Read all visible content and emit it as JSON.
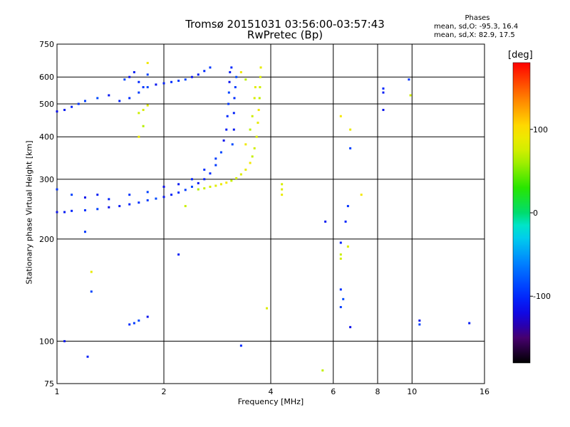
{
  "chart_data": {
    "type": "scatter",
    "title": "Tromsø 20151031 03:56:00-03:57:43",
    "subtitle": "RwPretec (Bp)",
    "xlabel": "Frequency [MHz]",
    "ylabel": "Stationary phase Virtual Height [km]",
    "x_scale": "log",
    "y_scale": "log",
    "xlim": [
      1,
      16
    ],
    "ylim": [
      75,
      750
    ],
    "x_ticks": [
      "1",
      "2",
      "4",
      "6",
      "8",
      "10",
      "16"
    ],
    "y_ticks": [
      "75",
      "100",
      "200",
      "300",
      "400",
      "500",
      "600",
      "750"
    ],
    "grid": true,
    "phases_header": "Phases",
    "phases_stats_o": "mean, sd,O: -95.3, 16.4",
    "phases_stats_x": "mean, sd,X:  82.9, 17.5",
    "colorbar": {
      "label": "[deg]",
      "ticks": [
        "100",
        "0",
        "-100"
      ],
      "tick_values": [
        100,
        0,
        -100
      ],
      "range": [
        -180,
        180
      ],
      "colormap": "rainbow"
    },
    "series": [
      {
        "mode": "O",
        "color_phase": -100,
        "points": [
          [
            1.0,
            475
          ],
          [
            1.05,
            480
          ],
          [
            1.1,
            490
          ],
          [
            1.15,
            500
          ],
          [
            1.2,
            510
          ],
          [
            1.3,
            520
          ],
          [
            1.4,
            530
          ],
          [
            1.5,
            510
          ],
          [
            1.6,
            520
          ],
          [
            1.7,
            540
          ],
          [
            1.8,
            560
          ],
          [
            1.9,
            570
          ],
          [
            2.0,
            575
          ],
          [
            2.1,
            580
          ],
          [
            2.2,
            585
          ],
          [
            2.3,
            590
          ],
          [
            2.4,
            600
          ],
          [
            2.5,
            610
          ],
          [
            2.6,
            625
          ],
          [
            2.7,
            640
          ],
          [
            1.55,
            590
          ],
          [
            1.6,
            600
          ],
          [
            1.65,
            620
          ],
          [
            1.7,
            580
          ],
          [
            1.75,
            560
          ],
          [
            1.8,
            610
          ],
          [
            1.0,
            240
          ],
          [
            1.05,
            240
          ],
          [
            1.1,
            242
          ],
          [
            1.2,
            243
          ],
          [
            1.3,
            245
          ],
          [
            1.4,
            248
          ],
          [
            1.5,
            250
          ],
          [
            1.6,
            253
          ],
          [
            1.7,
            256
          ],
          [
            1.8,
            260
          ],
          [
            1.9,
            263
          ],
          [
            2.0,
            266
          ],
          [
            2.1,
            270
          ],
          [
            2.2,
            274
          ],
          [
            2.3,
            279
          ],
          [
            2.4,
            285
          ],
          [
            2.5,
            292
          ],
          [
            2.6,
            300
          ],
          [
            2.7,
            312
          ],
          [
            2.8,
            330
          ],
          [
            2.9,
            360
          ],
          [
            2.95,
            390
          ],
          [
            3.0,
            420
          ],
          [
            3.02,
            460
          ],
          [
            3.04,
            500
          ],
          [
            3.05,
            540
          ],
          [
            3.06,
            580
          ],
          [
            3.07,
            620
          ],
          [
            3.1,
            640
          ],
          [
            1.0,
            280
          ],
          [
            1.1,
            270
          ],
          [
            1.2,
            265
          ],
          [
            1.3,
            270
          ],
          [
            1.4,
            262
          ],
          [
            1.6,
            270
          ],
          [
            1.8,
            275
          ],
          [
            2.0,
            285
          ],
          [
            2.2,
            290
          ],
          [
            2.4,
            300
          ],
          [
            2.6,
            320
          ],
          [
            2.8,
            345
          ],
          [
            3.12,
            380
          ],
          [
            3.15,
            420
          ],
          [
            3.15,
            470
          ],
          [
            3.16,
            520
          ],
          [
            3.18,
            560
          ],
          [
            3.2,
            600
          ],
          [
            1.05,
            100
          ],
          [
            1.22,
            90
          ],
          [
            1.6,
            112
          ],
          [
            1.65,
            113
          ],
          [
            1.7,
            115
          ],
          [
            1.8,
            118
          ],
          [
            2.2,
            180
          ],
          [
            3.3,
            97
          ],
          [
            1.2,
            210
          ],
          [
            1.25,
            140
          ],
          [
            8.3,
            480
          ],
          [
            8.3,
            540
          ],
          [
            8.3,
            555
          ],
          [
            9.8,
            590
          ],
          [
            10.5,
            112
          ],
          [
            10.5,
            115
          ],
          [
            14.5,
            113
          ],
          [
            6.5,
            225
          ],
          [
            6.6,
            250
          ],
          [
            6.7,
            370
          ],
          [
            6.7,
            110
          ],
          [
            5.7,
            225
          ],
          [
            6.3,
            195
          ],
          [
            6.3,
            142
          ],
          [
            6.3,
            126
          ],
          [
            6.4,
            133
          ]
        ]
      },
      {
        "mode": "X",
        "color_phase": 80,
        "points": [
          [
            2.5,
            280
          ],
          [
            2.6,
            282
          ],
          [
            2.7,
            285
          ],
          [
            2.8,
            287
          ],
          [
            2.9,
            290
          ],
          [
            3.0,
            293
          ],
          [
            3.1,
            297
          ],
          [
            3.2,
            302
          ],
          [
            3.3,
            310
          ],
          [
            3.4,
            320
          ],
          [
            3.5,
            335
          ],
          [
            3.55,
            350
          ],
          [
            3.6,
            370
          ],
          [
            3.65,
            400
          ],
          [
            3.68,
            440
          ],
          [
            3.7,
            480
          ],
          [
            3.72,
            520
          ],
          [
            3.73,
            560
          ],
          [
            3.74,
            600
          ],
          [
            3.75,
            640
          ],
          [
            3.4,
            380
          ],
          [
            3.5,
            420
          ],
          [
            3.55,
            460
          ],
          [
            3.6,
            520
          ],
          [
            3.62,
            560
          ],
          [
            3.3,
            620
          ],
          [
            3.4,
            590
          ],
          [
            1.7,
            470
          ],
          [
            1.75,
            480
          ],
          [
            1.8,
            495
          ],
          [
            1.7,
            400
          ],
          [
            1.75,
            430
          ],
          [
            2.3,
            250
          ],
          [
            4.3,
            290
          ],
          [
            4.3,
            280
          ],
          [
            4.3,
            270
          ],
          [
            6.3,
            460
          ],
          [
            6.3,
            180
          ],
          [
            6.3,
            175
          ],
          [
            6.6,
            190
          ],
          [
            6.7,
            420
          ],
          [
            7.2,
            270
          ],
          [
            5.6,
            82
          ],
          [
            9.9,
            530
          ],
          [
            3.9,
            125
          ],
          [
            1.25,
            160
          ],
          [
            1.8,
            660
          ]
        ]
      }
    ]
  }
}
